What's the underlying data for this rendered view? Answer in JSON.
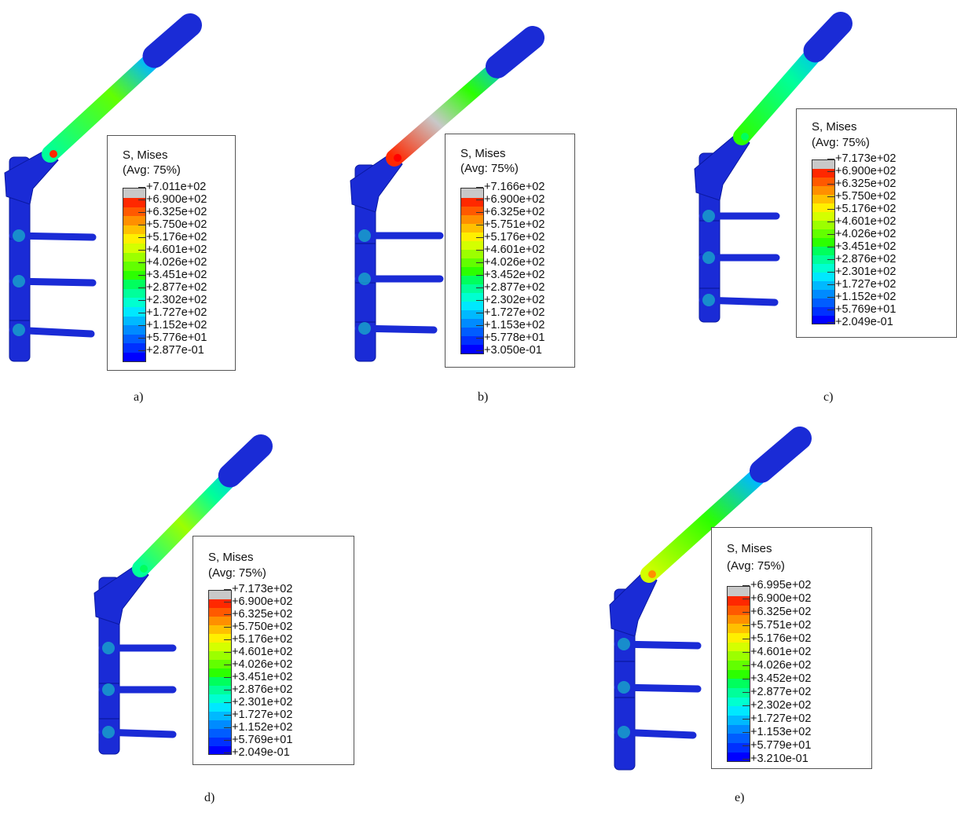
{
  "colors": {
    "scale": [
      "#0000ff",
      "#0030ff",
      "#005dff",
      "#008bff",
      "#00b9ff",
      "#00e8ff",
      "#00ffd0",
      "#00ff9a",
      "#00ff5d",
      "#2cff00",
      "#62ff00",
      "#9cff00",
      "#d4ff00",
      "#ffef00",
      "#ffc000",
      "#ff8f00",
      "#ff5900",
      "#ff2800",
      "#c8c8c8"
    ],
    "model_blue": "#1a2bd6",
    "model_dark": "#0a18a0",
    "background": "#ffffff"
  },
  "figures": [
    {
      "caption": "a)",
      "legend": {
        "title": "S, Mises",
        "subtitle": "(Avg: 75%)",
        "ticks": [
          "+7.011e+02",
          "+6.900e+02",
          "+6.325e+02",
          "+5.750e+02",
          "+5.176e+02",
          "+4.601e+02",
          "+4.026e+02",
          "+3.451e+02",
          "+2.877e+02",
          "+2.302e+02",
          "+1.727e+02",
          "+1.152e+02",
          "+5.776e+01",
          "+2.877e-01"
        ]
      }
    },
    {
      "caption": "b)",
      "legend": {
        "title": "S, Mises",
        "subtitle": "(Avg: 75%)",
        "ticks": [
          "+7.166e+02",
          "+6.900e+02",
          "+6.325e+02",
          "+5.751e+02",
          "+5.176e+02",
          "+4.601e+02",
          "+4.026e+02",
          "+3.452e+02",
          "+2.877e+02",
          "+2.302e+02",
          "+1.727e+02",
          "+1.153e+02",
          "+5.778e+01",
          "+3.050e-01"
        ]
      }
    },
    {
      "caption": "c)",
      "legend": {
        "title": "S, Mises",
        "subtitle": "(Avg: 75%)",
        "ticks": [
          "+7.173e+02",
          "+6.900e+02",
          "+6.325e+02",
          "+5.750e+02",
          "+5.176e+02",
          "+4.601e+02",
          "+4.026e+02",
          "+3.451e+02",
          "+2.876e+02",
          "+2.301e+02",
          "+1.727e+02",
          "+1.152e+02",
          "+5.769e+01",
          "+2.049e-01"
        ]
      }
    },
    {
      "caption": "d)",
      "legend": {
        "title": "S, Mises",
        "subtitle": "(Avg: 75%)",
        "ticks": [
          "+7.173e+02",
          "+6.900e+02",
          "+6.325e+02",
          "+5.750e+02",
          "+5.176e+02",
          "+4.601e+02",
          "+4.026e+02",
          "+3.451e+02",
          "+2.876e+02",
          "+2.301e+02",
          "+1.727e+02",
          "+1.152e+02",
          "+5.769e+01",
          "+2.049e-01"
        ]
      }
    },
    {
      "caption": "e)",
      "legend": {
        "title": "S, Mises",
        "subtitle": "(Avg: 75%)",
        "ticks": [
          "+6.995e+02",
          "+6.900e+02",
          "+6.325e+02",
          "+5.751e+02",
          "+5.176e+02",
          "+4.601e+02",
          "+4.026e+02",
          "+3.452e+02",
          "+2.877e+02",
          "+2.302e+02",
          "+1.727e+02",
          "+1.153e+02",
          "+5.779e+01",
          "+3.210e-01"
        ]
      }
    }
  ]
}
